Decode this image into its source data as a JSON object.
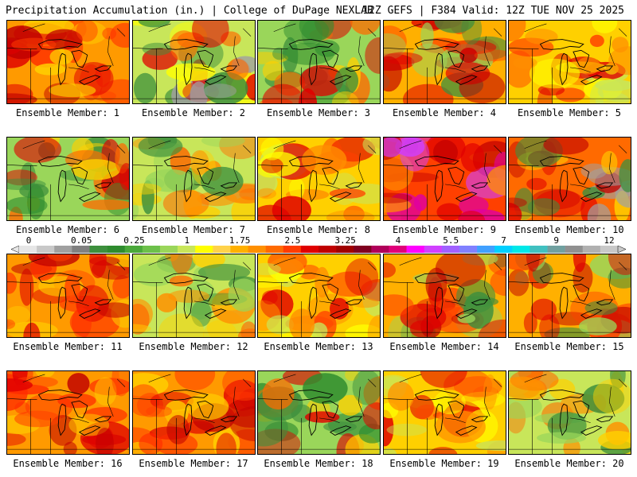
{
  "header": {
    "title_left": "Precipitation Accumulation (in.) | College of DuPage NEXLAB",
    "title_right": "12Z GEFS | F384 Valid: 12Z TUE NOV 25 2025"
  },
  "colorbar": {
    "labels": [
      "0",
      "0.05",
      "0.25",
      "1",
      "1.75",
      "2.5",
      "3.25",
      "4",
      "5.5",
      "7",
      "9",
      "12"
    ],
    "colors": [
      "#e6e6e6",
      "#c8c8c8",
      "#a0a0a0",
      "#808080",
      "#3d8f3d",
      "#2e8b2e",
      "#4aa83a",
      "#6cc04a",
      "#9ad65a",
      "#c8e65a",
      "#ffff00",
      "#ffd24a",
      "#ffb000",
      "#ff9000",
      "#ff6a00",
      "#ff3c00",
      "#e00000",
      "#c00000",
      "#a00000",
      "#800020",
      "#b0005a",
      "#e0007a",
      "#ff00ff",
      "#d040ff",
      "#a060ff",
      "#8080ff",
      "#40a0ff",
      "#00d0ff",
      "#00e8e8",
      "#40c0c0",
      "#70a0a0",
      "#909090",
      "#b0b0b0",
      "#c8c8c8"
    ]
  },
  "members": [
    {
      "label": "Ensemble Member: 1",
      "scheme": "red"
    },
    {
      "label": "Ensemble Member: 2",
      "scheme": "green-gray"
    },
    {
      "label": "Ensemble Member: 3",
      "scheme": "green"
    },
    {
      "label": "Ensemble Member: 4",
      "scheme": "red-green"
    },
    {
      "label": "Ensemble Member: 5",
      "scheme": "orange"
    },
    {
      "label": "Ensemble Member: 6",
      "scheme": "green"
    },
    {
      "label": "Ensemble Member: 7",
      "scheme": "green-orange"
    },
    {
      "label": "Ensemble Member: 8",
      "scheme": "orange"
    },
    {
      "label": "Ensemble Member: 9",
      "scheme": "magenta"
    },
    {
      "label": "Ensemble Member: 10",
      "scheme": "red-gray"
    },
    {
      "label": "Ensemble Member: 11",
      "scheme": "red"
    },
    {
      "label": "Ensemble Member: 12",
      "scheme": "green-orange"
    },
    {
      "label": "Ensemble Member: 13",
      "scheme": "orange"
    },
    {
      "label": "Ensemble Member: 14",
      "scheme": "red-green"
    },
    {
      "label": "Ensemble Member: 15",
      "scheme": "red-green"
    },
    {
      "label": "Ensemble Member: 16",
      "scheme": "red"
    },
    {
      "label": "Ensemble Member: 17",
      "scheme": "red"
    },
    {
      "label": "Ensemble Member: 18",
      "scheme": "green"
    },
    {
      "label": "Ensemble Member: 19",
      "scheme": "orange"
    },
    {
      "label": "Ensemble Member: 20",
      "scheme": "green-orange"
    }
  ],
  "schemes": {
    "red": {
      "bg": "#ff9a00",
      "blobs": [
        "#ff4000",
        "#e00000",
        "#ff2a00",
        "#ffd000",
        "#c00000"
      ]
    },
    "green-gray": {
      "bg": "#c8e65a",
      "blobs": [
        "#3d8f3d",
        "#a0a0a0",
        "#ff6a00",
        "#ffff00",
        "#e00000"
      ]
    },
    "green": {
      "bg": "#9ad65a",
      "blobs": [
        "#3d8f3d",
        "#ffd000",
        "#ff6a00",
        "#2e8b2e",
        "#e00000"
      ]
    },
    "red-green": {
      "bg": "#ffb000",
      "blobs": [
        "#e00000",
        "#3d8f3d",
        "#ff4000",
        "#9ad65a",
        "#c00000"
      ]
    },
    "orange": {
      "bg": "#ffd000",
      "blobs": [
        "#ff9000",
        "#ff4000",
        "#c8e65a",
        "#e00000",
        "#ffff00"
      ]
    },
    "green-orange": {
      "bg": "#c8e65a",
      "blobs": [
        "#ffd000",
        "#3d8f3d",
        "#ff6a00",
        "#9ad65a",
        "#ff9000"
      ]
    },
    "magenta": {
      "bg": "#ff4000",
      "blobs": [
        "#c00000",
        "#e000a0",
        "#ff9000",
        "#d040ff",
        "#e00000"
      ]
    },
    "red-gray": {
      "bg": "#ff6a00",
      "blobs": [
        "#c00000",
        "#a0a0a0",
        "#ffd000",
        "#e00000",
        "#3d8f3d"
      ]
    }
  }
}
